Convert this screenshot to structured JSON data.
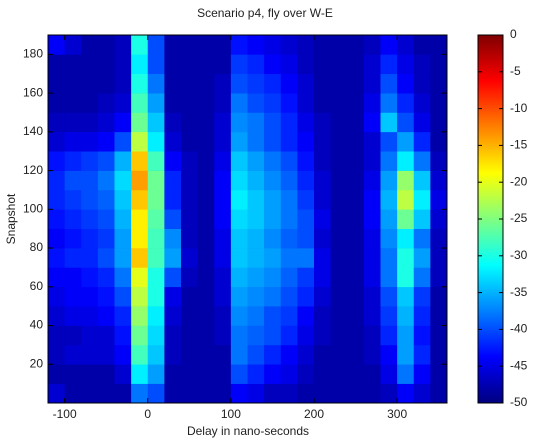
{
  "chart_data": {
    "type": "heatmap",
    "title": "Scenario p4, fly over W-E",
    "xlabel": "Delay in nano-seconds",
    "ylabel": "Snapshot",
    "colormap": "jet",
    "x": [
      -110,
      -90,
      -70,
      -50,
      -30,
      -10,
      10,
      30,
      50,
      70,
      90,
      110,
      130,
      150,
      170,
      190,
      210,
      230,
      250,
      270,
      290,
      310,
      330,
      350
    ],
    "y": [
      5,
      15,
      25,
      35,
      45,
      55,
      65,
      75,
      85,
      95,
      105,
      115,
      125,
      135,
      145,
      155,
      165,
      175,
      185
    ],
    "z": [
      [
        -46,
        -48,
        -48,
        -48,
        -48,
        -38,
        -40,
        -48,
        -48,
        -48,
        -48,
        -44,
        -45,
        -47,
        -47,
        -48,
        -48,
        -48,
        -48,
        -48,
        -47,
        -44,
        -46,
        -48
      ],
      [
        -48,
        -48,
        -48,
        -48,
        -46,
        -32,
        -36,
        -48,
        -48,
        -48,
        -48,
        -40,
        -42,
        -44,
        -45,
        -47,
        -48,
        -48,
        -48,
        -48,
        -45,
        -38,
        -44,
        -48
      ],
      [
        -47,
        -46,
        -46,
        -46,
        -44,
        -28,
        -34,
        -47,
        -48,
        -48,
        -48,
        -38,
        -40,
        -42,
        -44,
        -46,
        -48,
        -48,
        -48,
        -47,
        -44,
        -36,
        -42,
        -48
      ],
      [
        -47,
        -47,
        -46,
        -46,
        -43,
        -26,
        -33,
        -47,
        -48,
        -48,
        -47,
        -38,
        -39,
        -40,
        -42,
        -45,
        -47,
        -48,
        -48,
        -47,
        -42,
        -36,
        -43,
        -48
      ],
      [
        -46,
        -45,
        -45,
        -44,
        -42,
        -24,
        -32,
        -46,
        -48,
        -48,
        -47,
        -37,
        -38,
        -40,
        -41,
        -44,
        -47,
        -48,
        -48,
        -46,
        -41,
        -35,
        -42,
        -48
      ],
      [
        -45,
        -44,
        -44,
        -43,
        -40,
        -22,
        -30,
        -45,
        -48,
        -48,
        -46,
        -36,
        -37,
        -38,
        -40,
        -42,
        -46,
        -48,
        -48,
        -46,
        -40,
        -34,
        -41,
        -48
      ],
      [
        -44,
        -44,
        -43,
        -42,
        -38,
        -20,
        -30,
        -40,
        -47,
        -48,
        -46,
        -35,
        -36,
        -37,
        -39,
        -41,
        -45,
        -48,
        -48,
        -45,
        -38,
        -30,
        -38,
        -47
      ],
      [
        -43,
        -42,
        -42,
        -40,
        -36,
        -16,
        -28,
        -36,
        -46,
        -48,
        -45,
        -34,
        -35,
        -36,
        -38,
        -38,
        -45,
        -48,
        -48,
        -45,
        -38,
        -30,
        -36,
        -47
      ],
      [
        -44,
        -43,
        -42,
        -41,
        -36,
        -18,
        -28,
        -37,
        -47,
        -48,
        -45,
        -34,
        -35,
        -37,
        -39,
        -40,
        -46,
        -48,
        -48,
        -45,
        -37,
        -32,
        -38,
        -47
      ],
      [
        -43,
        -42,
        -41,
        -40,
        -35,
        -18,
        -27,
        -40,
        -47,
        -48,
        -44,
        -33,
        -34,
        -36,
        -38,
        -40,
        -45,
        -48,
        -48,
        -44,
        -36,
        -26,
        -34,
        -46
      ],
      [
        -42,
        -41,
        -40,
        -39,
        -34,
        -16,
        -26,
        -42,
        -47,
        -48,
        -44,
        -32,
        -34,
        -36,
        -38,
        -41,
        -46,
        -48,
        -48,
        -44,
        -35,
        -22,
        -32,
        -45
      ],
      [
        -42,
        -40,
        -40,
        -38,
        -33,
        -14,
        -26,
        -42,
        -47,
        -48,
        -44,
        -33,
        -35,
        -37,
        -39,
        -42,
        -46,
        -48,
        -48,
        -45,
        -36,
        -24,
        -34,
        -46
      ],
      [
        -43,
        -42,
        -41,
        -40,
        -35,
        -16,
        -28,
        -44,
        -47,
        -48,
        -45,
        -34,
        -36,
        -38,
        -40,
        -43,
        -47,
        -48,
        -48,
        -46,
        -38,
        -32,
        -38,
        -47
      ],
      [
        -46,
        -45,
        -45,
        -44,
        -40,
        -22,
        -32,
        -46,
        -48,
        -48,
        -46,
        -36,
        -38,
        -40,
        -42,
        -44,
        -47,
        -48,
        -48,
        -46,
        -40,
        -36,
        -42,
        -48
      ],
      [
        -47,
        -47,
        -47,
        -46,
        -44,
        -26,
        -34,
        -47,
        -48,
        -48,
        -46,
        -37,
        -38,
        -40,
        -42,
        -45,
        -47,
        -48,
        -48,
        -44,
        -34,
        -40,
        -45,
        -48
      ],
      [
        -48,
        -48,
        -48,
        -47,
        -46,
        -28,
        -36,
        -48,
        -48,
        -48,
        -47,
        -38,
        -40,
        -41,
        -43,
        -46,
        -48,
        -48,
        -48,
        -45,
        -38,
        -42,
        -46,
        -48
      ],
      [
        -48,
        -48,
        -48,
        -48,
        -47,
        -30,
        -38,
        -48,
        -48,
        -48,
        -47,
        -40,
        -41,
        -42,
        -44,
        -46,
        -48,
        -48,
        -48,
        -46,
        -40,
        -44,
        -47,
        -48
      ],
      [
        -48,
        -48,
        -48,
        -48,
        -47,
        -32,
        -40,
        -48,
        -48,
        -48,
        -48,
        -41,
        -42,
        -44,
        -45,
        -47,
        -48,
        -48,
        -48,
        -46,
        -42,
        -45,
        -47,
        -48
      ],
      [
        -44,
        -46,
        -48,
        -48,
        -47,
        -30,
        -40,
        -48,
        -48,
        -48,
        -48,
        -43,
        -44,
        -45,
        -46,
        -47,
        -48,
        -48,
        -48,
        -47,
        -44,
        -46,
        -48,
        -48
      ]
    ],
    "xlim": [
      -120,
      360
    ],
    "ylim": [
      0,
      190
    ],
    "xticks": [
      -100,
      0,
      100,
      200,
      300
    ],
    "yticks": [
      20,
      40,
      60,
      80,
      100,
      120,
      140,
      160,
      180
    ],
    "clim": [
      -50,
      0
    ],
    "cticks": [
      0,
      -5,
      -10,
      -15,
      -20,
      -25,
      -30,
      -35,
      -40,
      -45,
      -50
    ]
  }
}
